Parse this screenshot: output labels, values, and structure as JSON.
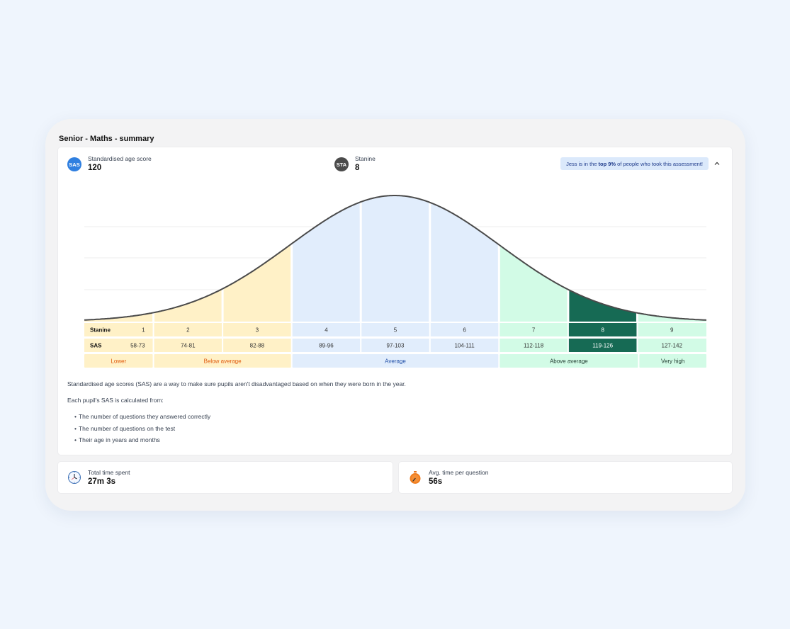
{
  "title": "Senior - Maths - summary",
  "sas": {
    "badge": "SAS",
    "label": "Standardised age score",
    "value": "120",
    "color": "#2f7fe0"
  },
  "stanine": {
    "badge": "STA",
    "label": "Stanine",
    "value": "8",
    "color": "#4b4b4b"
  },
  "banner": {
    "prefix": "Jess is in the",
    "highlight": "top 9%",
    "suffix": "of people who took this assessment!"
  },
  "chart_data": {
    "type": "area",
    "curve": "normal distribution",
    "row_labels": {
      "stanine": "Stanine",
      "sas": "SAS"
    },
    "stanines": [
      "1",
      "2",
      "3",
      "4",
      "5",
      "6",
      "7",
      "8",
      "9"
    ],
    "sas_ranges": [
      "58-73",
      "74-81",
      "82-88",
      "89-96",
      "97-103",
      "104-111",
      "112-118",
      "119-126",
      "127-142"
    ],
    "bands": [
      {
        "label": "Lower",
        "stanines": [
          1
        ]
      },
      {
        "label": "Below average",
        "stanines": [
          2,
          3
        ]
      },
      {
        "label": "Average",
        "stanines": [
          4,
          5,
          6
        ]
      },
      {
        "label": "Above average",
        "stanines": [
          7,
          8
        ]
      },
      {
        "label": "Very high",
        "stanines": [
          9
        ]
      }
    ],
    "highlighted_stanine": 8,
    "colors": {
      "below_fill": "#fff1c7",
      "below_text": "#e05a0c",
      "average_fill": "#e1edfc",
      "average_text": "#2250a8",
      "above_fill": "#d2fbe6",
      "highlight": "#166a54",
      "curve": "#4a4a4a"
    }
  },
  "description": {
    "p1": "Standardised age scores (SAS) are a way to make sure pupils aren't disadvantaged based on when they were born in the year.",
    "p2": "Each pupil's SAS is calculated from:",
    "bullets": [
      "The number of questions they answered correctly",
      "The number of questions on the test",
      "Their age in years and months"
    ]
  },
  "time_spent": {
    "label": "Total time spent",
    "value": "27m 3s",
    "icon": "clock-icon"
  },
  "avg_time": {
    "label": "Avg. time per question",
    "value": "56s",
    "icon": "stopwatch-icon"
  }
}
